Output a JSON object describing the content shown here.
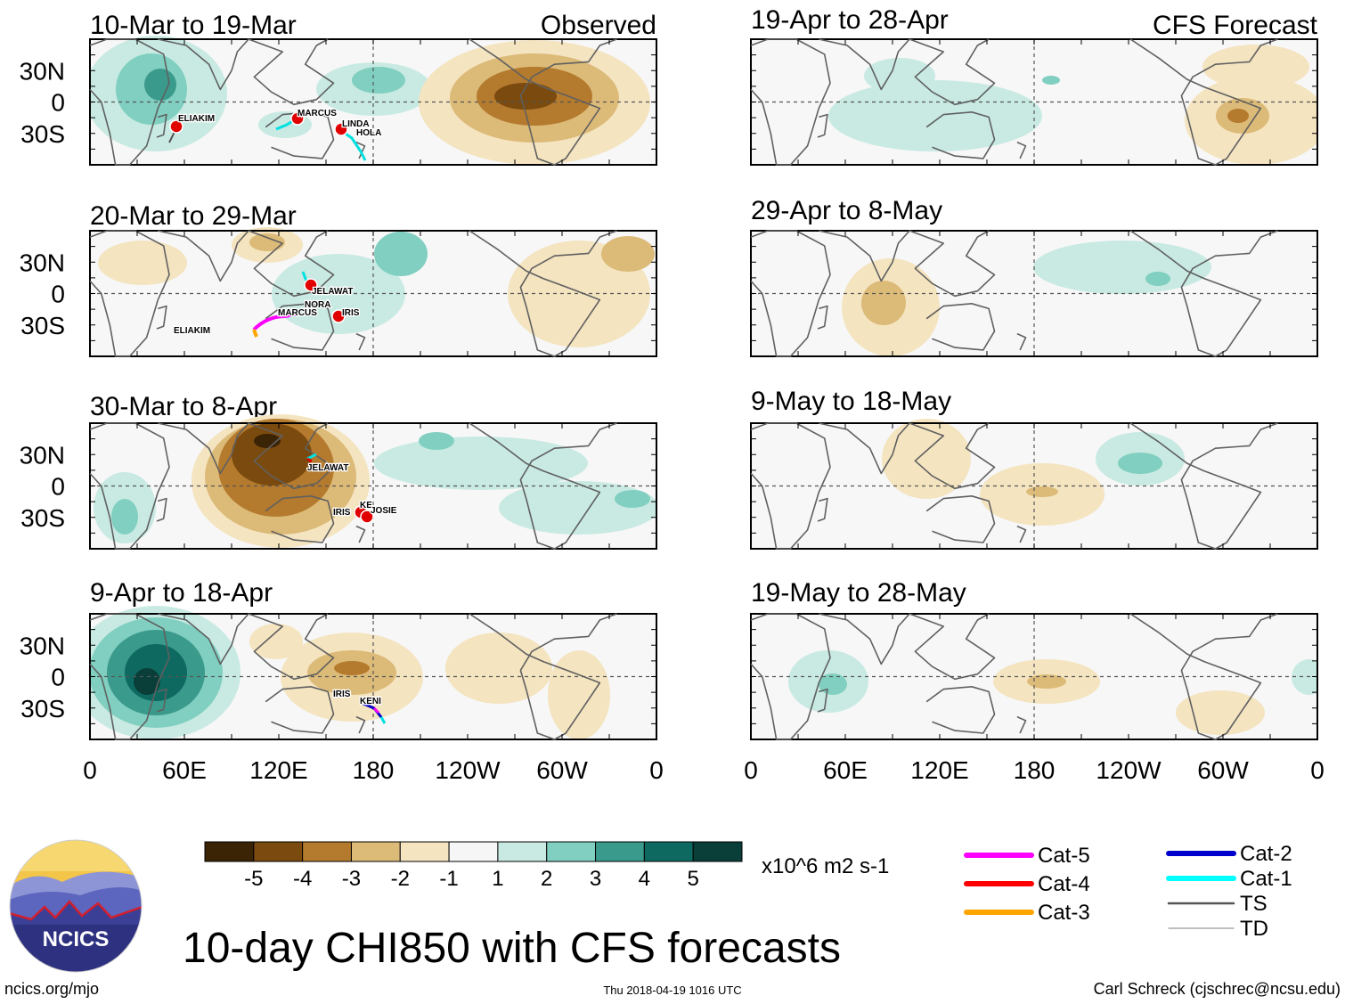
{
  "observed_label": "Observed",
  "forecast_label": "CFS Forecast",
  "panels": [
    {
      "title": "10-Mar to 19-Mar",
      "column": "observed"
    },
    {
      "title": "20-Mar to 29-Mar",
      "column": "observed"
    },
    {
      "title": "30-Mar to 8-Apr",
      "column": "observed"
    },
    {
      "title": "9-Apr to 18-Apr",
      "column": "observed"
    },
    {
      "title": "19-Apr to 28-Apr",
      "column": "forecast"
    },
    {
      "title": "29-Apr to 8-May",
      "column": "forecast"
    },
    {
      "title": "9-May to 18-May",
      "column": "forecast"
    },
    {
      "title": "19-May to 28-May",
      "column": "forecast"
    }
  ],
  "lat_labels": [
    "30N",
    "0",
    "30S"
  ],
  "lon_labels": [
    "0",
    "60E",
    "120E",
    "180",
    "120W",
    "60W",
    "0"
  ],
  "storm_labels": {
    "p0": [
      "ELIAKIM",
      "MARCUS",
      "LINDA",
      "HOLA"
    ],
    "p1": [
      "JELAWAT",
      "NORA",
      "MARCUS",
      "IRIS",
      "ELIAKIM"
    ],
    "p2": [
      "JELAWAT",
      "IRIS",
      "KE..",
      "JOSIE"
    ],
    "p3": [
      "IRIS",
      "KENI"
    ]
  },
  "colorbar": {
    "tick_labels": [
      "-5",
      "-4",
      "-3",
      "-2",
      "-1",
      "1",
      "2",
      "3",
      "4",
      "5"
    ],
    "colors": [
      "#3b2306",
      "#7a4a0e",
      "#b47a2e",
      "#dcba78",
      "#f4e4c0",
      "#f6f6f6",
      "#c8eae2",
      "#80cfc0",
      "#3a9a8c",
      "#0e6a60",
      "#0a3e38"
    ],
    "units": "x10^6 m2 s-1"
  },
  "legend": {
    "items": [
      {
        "label": "Cat-5",
        "color": "#ff00ff"
      },
      {
        "label": "Cat-4",
        "color": "#ff0000"
      },
      {
        "label": "Cat-3",
        "color": "#ffa500"
      },
      {
        "label": "Cat-2",
        "color": "#0000cc"
      },
      {
        "label": "Cat-1",
        "color": "#00ffff"
      },
      {
        "label": "TS",
        "color": "#555555"
      },
      {
        "label": "TD",
        "color": "#999999"
      }
    ]
  },
  "logo_text": "NCICS",
  "main_title": "10-day CHI850 with CFS forecasts",
  "footer": {
    "left": "ncics.org/mjo",
    "center": "Thu 2018-04-19 1016 UTC",
    "right": "Carl Schreck (cjschrec@ncsu.edu)"
  }
}
